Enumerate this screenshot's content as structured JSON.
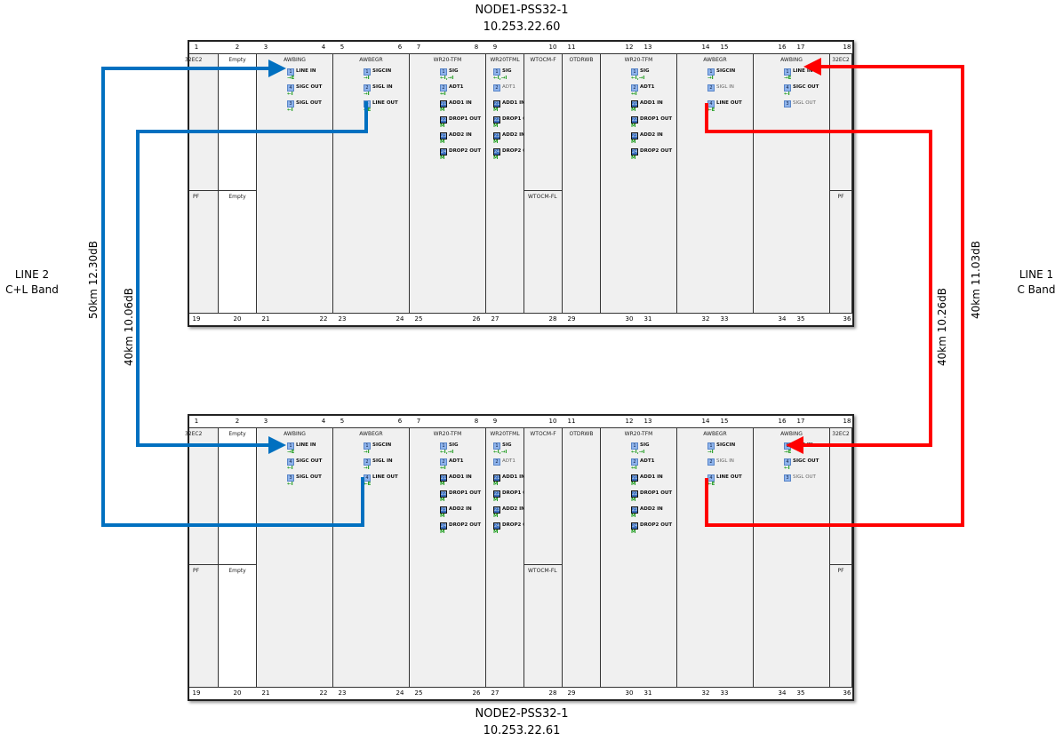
{
  "nodes": [
    {
      "name": "NODE1-PSS32-1",
      "ip": "10.253.22.60"
    },
    {
      "name": "NODE2-PSS32-1",
      "ip": "10.253.22.61"
    }
  ],
  "top_slot_numbers": [
    "1",
    "2",
    "3",
    "4",
    "5",
    "6",
    "7",
    "8",
    "9",
    "10",
    "11",
    "12",
    "13",
    "14",
    "15",
    "16",
    "17",
    "18"
  ],
  "bottom_slot_numbers": [
    "19",
    "20",
    "21",
    "22",
    "23",
    "24",
    "25",
    "26",
    "27",
    "28",
    "29",
    "30",
    "31",
    "32",
    "33",
    "34",
    "35",
    "36"
  ],
  "colors": {
    "line2": "#0070c0",
    "line1": "#ff0000",
    "port": "#8fb4ec",
    "indicator": "#1a9a1a"
  },
  "shelves": [
    {
      "cards": [
        {
          "slot": 1,
          "span": 1,
          "name": "32EC2",
          "lower": "PF",
          "ports": []
        },
        {
          "slot": 2,
          "span": 1,
          "name": "Empty",
          "lower": "Empty",
          "white": true,
          "ports": []
        },
        {
          "slot": 3,
          "span": 2,
          "name": "AWBING",
          "ports": [
            {
              "n": "1",
              "label": "LINE IN",
              "ind": "→E"
            },
            {
              "n": "4",
              "label": "SIGC OUT",
              "ind": "←I"
            },
            {
              "n": "3",
              "label": "SIGL OUT",
              "ind": "←I"
            }
          ]
        },
        {
          "slot": 5,
          "span": 2,
          "name": "AWBEGR",
          "ports": [
            {
              "n": "1",
              "label": "SIGCIN",
              "ind": "→I"
            },
            {
              "n": "2",
              "label": "SIGL IN",
              "ind": "→I"
            },
            {
              "n": "4",
              "label": "LINE OUT",
              "ind": "←E"
            }
          ]
        },
        {
          "slot": 7,
          "span": 2,
          "name": "WR20-TFM",
          "ports": [
            {
              "n": "1",
              "label": "SIG",
              "ind": "←I,→I"
            },
            {
              "n": "2",
              "label": "ADT1",
              "ind": "↔I"
            },
            {
              "n": "21",
              "label": "ADD1 IN",
              "ind": "M",
              "mpo": true
            },
            {
              "n": "22",
              "label": "DROP1 OUT",
              "ind": "M",
              "mpo": true
            },
            {
              "n": "23",
              "label": "ADD2 IN",
              "ind": "M",
              "mpo": true
            },
            {
              "n": "24",
              "label": "DROP2 OUT",
              "ind": "M",
              "mpo": true
            }
          ]
        },
        {
          "slot": 9,
          "span": 1,
          "name": "WR20TFML",
          "ports": [
            {
              "n": "1",
              "label": "SIG",
              "ind": "←I,→I"
            },
            {
              "n": "2",
              "label": "ADT1",
              "ind": "",
              "dim": true
            },
            {
              "n": "21",
              "label": "ADD1 IN",
              "ind": "M",
              "mpo": true
            },
            {
              "n": "22",
              "label": "DROP1 OUT",
              "ind": "M",
              "mpo": true
            },
            {
              "n": "23",
              "label": "ADD2 IN",
              "ind": "M",
              "mpo": true
            },
            {
              "n": "24",
              "label": "DROP2 OUT",
              "ind": "M",
              "mpo": true
            }
          ]
        },
        {
          "slot": 10,
          "span": 1,
          "name": "WTOCM-F",
          "lower": "WTOCM-FL",
          "ports": []
        },
        {
          "slot": 11,
          "span": 1,
          "name": "OTDRWB",
          "ports": []
        },
        {
          "slot": 12,
          "span": 2,
          "name": "WR20-TFM",
          "ports": [
            {
              "n": "1",
              "label": "SIG",
              "ind": "←I,→I"
            },
            {
              "n": "2",
              "label": "ADT1",
              "ind": "↔I"
            },
            {
              "n": "21",
              "label": "ADD1 IN",
              "ind": "M",
              "mpo": true
            },
            {
              "n": "22",
              "label": "DROP1 OUT",
              "ind": "M",
              "mpo": true
            },
            {
              "n": "23",
              "label": "ADD2 IN",
              "ind": "M",
              "mpo": true
            },
            {
              "n": "24",
              "label": "DROP2 OUT",
              "ind": "M",
              "mpo": true
            }
          ]
        },
        {
          "slot": 14,
          "span": 2,
          "name": "AWBEGR",
          "ports": [
            {
              "n": "1",
              "label": "SIGCIN",
              "ind": "→I"
            },
            {
              "n": "2",
              "label": "SIGL IN",
              "ind": "",
              "dim": true
            },
            {
              "n": "4",
              "label": "LINE OUT",
              "ind": "←E"
            }
          ]
        },
        {
          "slot": 16,
          "span": 2,
          "name": "AWBING",
          "ports": [
            {
              "n": "1",
              "label": "LINE IN",
              "ind": "→E"
            },
            {
              "n": "4",
              "label": "SIGC OUT",
              "ind": "←I"
            },
            {
              "n": "3",
              "label": "SIGL OUT",
              "ind": "",
              "dim": true
            }
          ]
        },
        {
          "slot": 18,
          "span": 1,
          "name": "32EC2",
          "lower": "PF",
          "ports": []
        }
      ]
    }
  ],
  "links": [
    {
      "label": "50km  12.30dB",
      "line": "LINE 2"
    },
    {
      "label": "40km  10.06dB",
      "line": "LINE 2"
    },
    {
      "label": "40km  10.26dB",
      "line": "LINE 1"
    },
    {
      "label": "40km  11.03dB",
      "line": "LINE 1"
    }
  ],
  "lines": [
    {
      "name": "LINE 2",
      "band": "C+L Band"
    },
    {
      "name": "LINE 1",
      "band": "C Band"
    }
  ]
}
